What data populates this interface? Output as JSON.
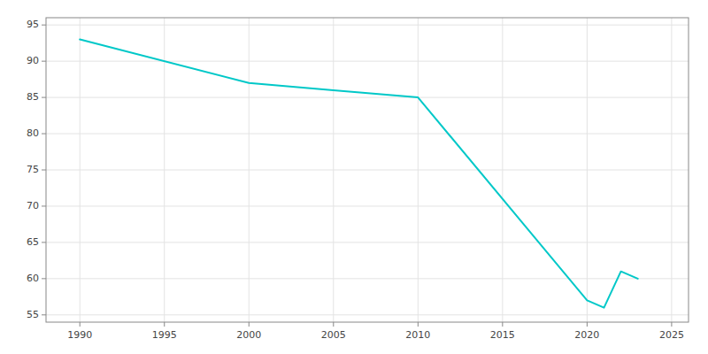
{
  "chart_data": {
    "type": "line",
    "x": [
      1990,
      2000,
      2005,
      2010,
      2020,
      2021,
      2022,
      2023
    ],
    "values": [
      93,
      87,
      86,
      85,
      57,
      56,
      61,
      60
    ],
    "color": "#00c8c8",
    "xlim": [
      1988,
      2026
    ],
    "ylim": [
      54,
      96
    ],
    "xticks": [
      1990,
      1995,
      2000,
      2005,
      2010,
      2015,
      2020,
      2025
    ],
    "yticks": [
      55,
      60,
      65,
      70,
      75,
      80,
      85,
      90,
      95
    ],
    "grid": true
  }
}
